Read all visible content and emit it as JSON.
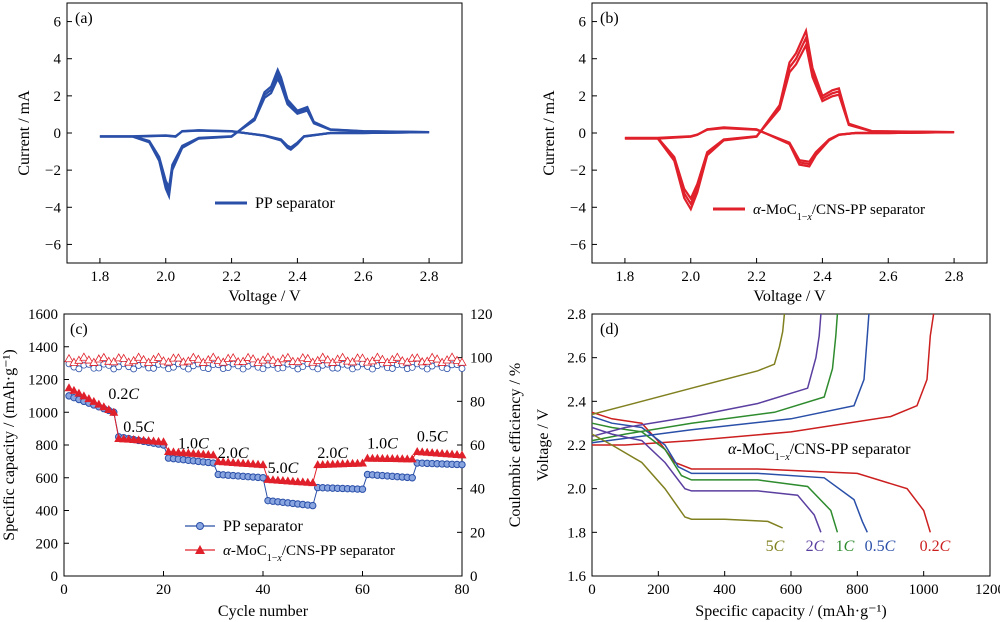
{
  "colors": {
    "blue": "#2a4fa8",
    "red": "#e0202a",
    "grey": "#000000"
  },
  "chart_data": [
    {
      "id": "a",
      "type": "line",
      "panel_label": "(a)",
      "xlabel": "Voltage / V",
      "ylabel": "Current / mA",
      "xlim": [
        1.7,
        2.9
      ],
      "ylim": [
        -7,
        7
      ],
      "xticks": [
        "1.8",
        "2.0",
        "2.2",
        "2.4",
        "2.6",
        "2.8"
      ],
      "yticks": [
        "−6",
        "−4",
        "−2",
        "0",
        "2",
        "4",
        "6"
      ],
      "legend": [
        "PP separator"
      ],
      "series": [
        {
          "name": "PP separator",
          "x": [
            1.8,
            1.9,
            1.95,
            1.98,
            2.0,
            2.01,
            2.02,
            2.05,
            2.1,
            2.2,
            2.27,
            2.3,
            2.32,
            2.34,
            2.35,
            2.37,
            2.4,
            2.43,
            2.45,
            2.5,
            2.6,
            2.8,
            2.6,
            2.5,
            2.42,
            2.4,
            2.38,
            2.37,
            2.35,
            2.3,
            2.2,
            2.1,
            2.05,
            2.03,
            2.0,
            1.9,
            1.8
          ],
          "y": [
            -0.2,
            -0.2,
            -0.5,
            -1.5,
            -3.0,
            -3.4,
            -2.0,
            -0.8,
            -0.3,
            -0.2,
            0.8,
            2.2,
            2.5,
            3.4,
            3.0,
            1.8,
            1.2,
            1.4,
            0.6,
            0.2,
            0.1,
            0.05,
            0.0,
            0.0,
            -0.2,
            -0.6,
            -0.9,
            -0.8,
            -0.4,
            -0.15,
            0.1,
            0.15,
            0.1,
            -0.2,
            -0.15,
            -0.2,
            -0.2
          ]
        }
      ]
    },
    {
      "id": "b",
      "type": "line",
      "panel_label": "(b)",
      "xlabel": "Voltage / V",
      "ylabel": "Current / mA",
      "xlim": [
        1.7,
        2.9
      ],
      "ylim": [
        -7,
        7
      ],
      "xticks": [
        "1.8",
        "2.0",
        "2.2",
        "2.4",
        "2.6",
        "2.8"
      ],
      "yticks": [
        "−6",
        "−4",
        "−2",
        "0",
        "2",
        "4",
        "6"
      ],
      "legend": [
        "α-MoC1−x/CNS-PP separator"
      ],
      "series": [
        {
          "name": "α-MoC1−x/CNS-PP separator",
          "x": [
            1.8,
            1.9,
            1.95,
            1.98,
            2.0,
            2.02,
            2.05,
            2.1,
            2.2,
            2.27,
            2.3,
            2.32,
            2.35,
            2.37,
            2.4,
            2.43,
            2.45,
            2.48,
            2.55,
            2.8,
            2.6,
            2.5,
            2.45,
            2.42,
            2.38,
            2.36,
            2.33,
            2.3,
            2.2,
            2.1,
            2.05,
            2.02,
            2.0,
            1.9,
            1.8
          ],
          "y": [
            -0.3,
            -0.3,
            -1.5,
            -3.5,
            -4.1,
            -3.2,
            -1.2,
            -0.4,
            -0.2,
            1.5,
            3.8,
            4.3,
            5.5,
            3.5,
            2.0,
            2.3,
            2.4,
            0.5,
            0.1,
            0.05,
            0.0,
            0.0,
            -0.1,
            -0.4,
            -1.2,
            -1.8,
            -1.7,
            -0.6,
            0.2,
            0.3,
            0.2,
            -0.1,
            -0.2,
            -0.3,
            -0.3
          ]
        }
      ]
    },
    {
      "id": "c",
      "type": "scatter",
      "panel_label": "(c)",
      "xlabel": "Cycle number",
      "ylabel": "Specific capacity / (mAh·g⁻¹)",
      "y2label": "Coulombic efficiency / %",
      "xlim": [
        0,
        80
      ],
      "ylim": [
        0,
        1600
      ],
      "y2lim": [
        0,
        120
      ],
      "xticks": [
        "0",
        "20",
        "40",
        "60",
        "80"
      ],
      "yticks": [
        "0",
        "200",
        "400",
        "600",
        "800",
        "1000",
        "1200",
        "1400",
        "1600"
      ],
      "y2ticks": [
        "0",
        "20",
        "40",
        "60",
        "80",
        "100",
        "120"
      ],
      "rate_labels": [
        {
          "text": "0.2",
          "unit": "C",
          "x": 12,
          "y": 1080
        },
        {
          "text": "0.5",
          "unit": "C",
          "x": 15,
          "y": 880
        },
        {
          "text": "1.0",
          "unit": "C",
          "x": 26,
          "y": 780
        },
        {
          "text": "2.0",
          "unit": "C",
          "x": 34,
          "y": 720
        },
        {
          "text": "5.0",
          "unit": "C",
          "x": 44,
          "y": 630
        },
        {
          "text": "2.0",
          "unit": "C",
          "x": 54,
          "y": 720
        },
        {
          "text": "1.0",
          "unit": "C",
          "x": 64,
          "y": 780
        },
        {
          "text": "0.5",
          "unit": "C",
          "x": 74,
          "y": 820
        }
      ],
      "legend": [
        "PP separator",
        "α-MoC1−x/CNS-PP separator"
      ],
      "series": [
        {
          "name": "PP separator",
          "segments": [
            [
              1100,
              1000
            ],
            [
              850,
              800
            ],
            [
              720,
              690
            ],
            [
              620,
              600
            ],
            [
              460,
              430
            ],
            [
              540,
              530
            ],
            [
              620,
              600
            ],
            [
              690,
              680
            ]
          ]
        },
        {
          "name": "α-MoC1−x/CNS-PP separator",
          "segments": [
            [
              1150,
              1000
            ],
            [
              840,
              820
            ],
            [
              760,
              740
            ],
            [
              700,
              680
            ],
            [
              590,
              570
            ],
            [
              680,
              690
            ],
            [
              720,
              715
            ],
            [
              760,
              740
            ]
          ]
        }
      ],
      "ce_values": {
        "PP separator": 96,
        "α-MoC1−x/CNS-PP separator": 99
      }
    },
    {
      "id": "d",
      "type": "line",
      "panel_label": "(d)",
      "xlabel": "Specific capacity / (mAh·g⁻¹)",
      "ylabel": "Voltage / V",
      "xlim": [
        0,
        1200
      ],
      "ylim": [
        1.6,
        2.8
      ],
      "xticks": [
        "0",
        "200",
        "400",
        "600",
        "800",
        "1000",
        "1200"
      ],
      "yticks": [
        "1.6",
        "1.8",
        "2.0",
        "2.2",
        "2.4",
        "2.6",
        "2.8"
      ],
      "legend_text": "α-MoC1−x/CNS-PP separator",
      "rate_labels": [
        {
          "text": "5",
          "unit": "C",
          "color": "#808020"
        },
        {
          "text": "2",
          "unit": "C",
          "color": "#5b3fa0"
        },
        {
          "text": "1",
          "unit": "C",
          "color": "#2e8b2e"
        },
        {
          "text": "0.5",
          "unit": "C",
          "color": "#2a4fa8"
        },
        {
          "text": "0.2",
          "unit": "C",
          "color": "#cc1f1f"
        }
      ],
      "series": [
        {
          "name": "0.2C",
          "color": "#cc1f1f",
          "discharge": {
            "x": [
              0,
              60,
              150,
              210,
              250,
              300,
              500,
              800,
              950,
              1000,
              1020
            ],
            "y": [
              2.35,
              2.32,
              2.3,
              2.2,
              2.12,
              2.09,
              2.09,
              2.07,
              2.0,
              1.9,
              1.8
            ]
          },
          "charge": {
            "x": [
              0,
              100,
              300,
              600,
              900,
              980,
              1010,
              1020,
              1030
            ],
            "y": [
              2.2,
              2.2,
              2.22,
              2.26,
              2.33,
              2.38,
              2.5,
              2.7,
              2.8
            ]
          }
        },
        {
          "name": "0.5C",
          "color": "#2a4fa8",
          "discharge": {
            "x": [
              0,
              60,
              150,
              220,
              260,
              300,
              500,
              700,
              790,
              815,
              830
            ],
            "y": [
              2.33,
              2.3,
              2.28,
              2.2,
              2.1,
              2.07,
              2.07,
              2.05,
              1.95,
              1.85,
              1.8
            ]
          },
          "charge": {
            "x": [
              0,
              100,
              300,
              600,
              790,
              820,
              830,
              835
            ],
            "y": [
              2.21,
              2.23,
              2.27,
              2.32,
              2.38,
              2.5,
              2.7,
              2.8
            ]
          }
        },
        {
          "name": "1C",
          "color": "#2e8b2e",
          "discharge": {
            "x": [
              0,
              60,
              150,
              220,
              270,
              300,
              500,
              650,
              720,
              740
            ],
            "y": [
              2.3,
              2.28,
              2.26,
              2.18,
              2.06,
              2.04,
              2.04,
              2.01,
              1.9,
              1.8
            ]
          },
          "charge": {
            "x": [
              0,
              100,
              300,
              550,
              700,
              725,
              735,
              740
            ],
            "y": [
              2.22,
              2.25,
              2.3,
              2.35,
              2.42,
              2.55,
              2.7,
              2.8
            ]
          }
        },
        {
          "name": "2C",
          "color": "#5b3fa0",
          "discharge": {
            "x": [
              0,
              60,
              150,
              220,
              280,
              300,
              500,
              620,
              670,
              690
            ],
            "y": [
              2.28,
              2.25,
              2.22,
              2.12,
              2.0,
              1.99,
              1.99,
              1.97,
              1.88,
              1.8
            ]
          },
          "charge": {
            "x": [
              0,
              100,
              300,
              500,
              650,
              675,
              685,
              690
            ],
            "y": [
              2.24,
              2.28,
              2.33,
              2.39,
              2.46,
              2.6,
              2.7,
              2.8
            ]
          }
        },
        {
          "name": "5C",
          "color": "#808020",
          "discharge": {
            "x": [
              0,
              60,
              150,
              220,
              280,
              300,
              400,
              530,
              560,
              575
            ],
            "y": [
              2.25,
              2.2,
              2.12,
              2.0,
              1.87,
              1.86,
              1.86,
              1.85,
              1.83,
              1.82
            ]
          },
          "charge": {
            "x": [
              0,
              100,
              300,
              500,
              550,
              565,
              575,
              580
            ],
            "y": [
              2.34,
              2.38,
              2.46,
              2.54,
              2.57,
              2.65,
              2.72,
              2.8
            ]
          }
        }
      ]
    }
  ]
}
